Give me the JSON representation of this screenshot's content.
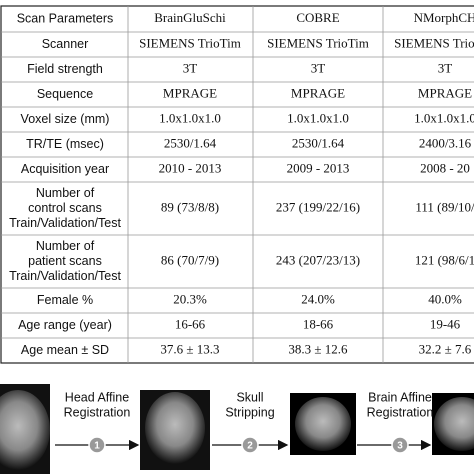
{
  "table": {
    "header": [
      "Scan Parameters",
      "BrainGluSchi",
      "COBRE",
      "NMorphCH"
    ],
    "rows": [
      {
        "label": [
          "Scanner"
        ],
        "values": [
          "SIEMENS TrioTim",
          "SIEMENS TrioTim",
          "SIEMENS TrioTim"
        ]
      },
      {
        "label": [
          "Field strength"
        ],
        "values": [
          "3T",
          "3T",
          "3T"
        ]
      },
      {
        "label": [
          "Sequence"
        ],
        "values": [
          "MPRAGE",
          "MPRAGE",
          "MPRAGE"
        ]
      },
      {
        "label": [
          "Voxel size (mm)"
        ],
        "values": [
          "1.0x1.0x1.0",
          "1.0x1.0x1.0",
          "1.0x1.0x1.0"
        ]
      },
      {
        "label": [
          "TR/TE (msec)"
        ],
        "values": [
          "2530/1.64",
          "2530/1.64",
          "2400/3.16"
        ]
      },
      {
        "label": [
          "Acquisition year"
        ],
        "values": [
          "2010 - 2013",
          "2009 - 2013",
          "2008 - 20"
        ]
      },
      {
        "label": [
          "Number of",
          "control scans",
          "Train/Validation/Test"
        ],
        "values": [
          "89 (73/8/8)",
          "237 (199/22/16)",
          "111 (89/10/"
        ]
      },
      {
        "label": [
          "Number of",
          "patient scans",
          "Train/Validation/Test"
        ],
        "values": [
          "86 (70/7/9)",
          "243 (207/23/13)",
          "121 (98/6/1"
        ]
      },
      {
        "label": [
          "Female %"
        ],
        "values": [
          "20.3%",
          "24.0%",
          "40.0%"
        ]
      },
      {
        "label": [
          "Age range (year)"
        ],
        "values": [
          "16-66",
          "18-66",
          "19-46"
        ]
      },
      {
        "label": [
          "Age mean ± SD"
        ],
        "values": [
          "37.6 ± 13.3",
          "38.3 ± 12.6",
          "32.2 ± 7.6"
        ]
      }
    ]
  },
  "pipeline": [
    {
      "label": [
        "Head Affine",
        "Registration"
      ],
      "number": "1"
    },
    {
      "label": [
        "Skull",
        "Stripping"
      ],
      "number": "2"
    },
    {
      "label": [
        "Brain Affine",
        "Registration"
      ],
      "number": "3"
    }
  ]
}
